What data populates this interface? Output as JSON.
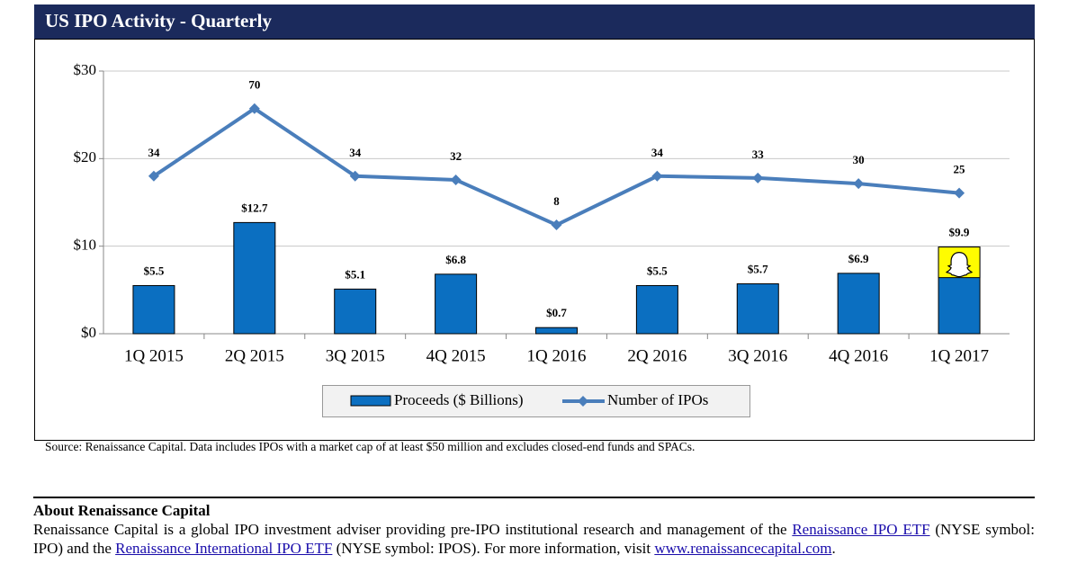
{
  "chart_data": {
    "type": "bar",
    "title": "US IPO Activity - Quarterly",
    "categories": [
      "1Q 2015",
      "2Q 2015",
      "3Q 2015",
      "4Q 2015",
      "1Q 2016",
      "2Q 2016",
      "3Q 2016",
      "4Q 2016",
      "1Q 2017"
    ],
    "series": [
      {
        "name": "Proceeds ($ Billions)",
        "color": "#0b6fc1",
        "values": [
          5.5,
          12.7,
          5.1,
          6.8,
          0.7,
          5.5,
          5.7,
          6.9,
          9.9
        ],
        "value_labels": [
          "$5.5",
          "$12.7",
          "$5.1",
          "$6.8",
          "$0.7",
          "$5.5",
          "$5.7",
          "$6.9",
          "$9.9"
        ]
      },
      {
        "name": "Number of IPOs",
        "type": "line",
        "axis": "y2",
        "color": "#4a7ebb",
        "values": [
          34,
          70,
          34,
          32,
          8,
          34,
          33,
          30,
          25
        ]
      }
    ],
    "ylim": [
      0,
      30
    ],
    "yticks": [
      {
        "value": 0,
        "label": "$0"
      },
      {
        "value": 10,
        "label": "$10"
      },
      {
        "value": 20,
        "label": "$20"
      },
      {
        "value": 30,
        "label": "$30"
      }
    ],
    "y2lim": [
      -50,
      90
    ],
    "grid": true,
    "source": "Source: Renaissance Capital. Data includes IPOs with a market cap of at least $50 million and excludes closed-end funds and SPACs."
  },
  "about": {
    "heading": "About Renaissance Capital",
    "text_1": "Renaissance Capital is a global IPO investment adviser providing pre-IPO institutional research and management of the ",
    "link_1": "Renaissance IPO ETF",
    "text_2": " (NYSE symbol: IPO) and the ",
    "link_2": "Renaissance International IPO ETF",
    "text_3": " (NYSE symbol: IPOS). For more information, visit ",
    "link_3": "www.renaissancecapital.com",
    "text_4": "."
  }
}
